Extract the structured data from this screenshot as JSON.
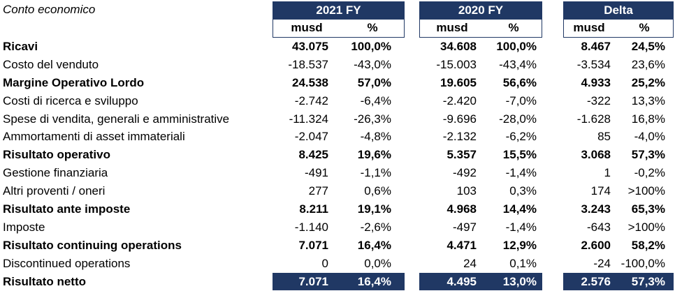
{
  "title": "Conto economico",
  "groups": [
    {
      "label": "2021 FY",
      "sub1": "musd",
      "sub2": "%"
    },
    {
      "label": "2020 FY",
      "sub1": "musd",
      "sub2": "%"
    },
    {
      "label": "Delta",
      "sub1": "musd",
      "sub2": "%"
    }
  ],
  "rows": [
    {
      "label": "Ricavi",
      "bold": true,
      "v": [
        "43.075",
        "100,0%",
        "34.608",
        "100,0%",
        "8.467",
        "24,5%"
      ]
    },
    {
      "label": "Costo del venduto",
      "bold": false,
      "v": [
        "-18.537",
        "-43,0%",
        "-15.003",
        "-43,4%",
        "-3.534",
        "23,6%"
      ]
    },
    {
      "label": "Margine Operativo Lordo",
      "bold": true,
      "v": [
        "24.538",
        "57,0%",
        "19.605",
        "56,6%",
        "4.933",
        "25,2%"
      ]
    },
    {
      "label": "Costi di ricerca e sviluppo",
      "bold": false,
      "v": [
        "-2.742",
        "-6,4%",
        "-2.420",
        "-7,0%",
        "-322",
        "13,3%"
      ]
    },
    {
      "label": "Spese di vendita, generali e amministrative",
      "bold": false,
      "v": [
        "-11.324",
        "-26,3%",
        "-9.696",
        "-28,0%",
        "-1.628",
        "16,8%"
      ]
    },
    {
      "label": "Ammortamenti di asset immateriali",
      "bold": false,
      "v": [
        "-2.047",
        "-4,8%",
        "-2.132",
        "-6,2%",
        "85",
        "-4,0%"
      ]
    },
    {
      "label": "Risultato operativo",
      "bold": true,
      "v": [
        "8.425",
        "19,6%",
        "5.357",
        "15,5%",
        "3.068",
        "57,3%"
      ]
    },
    {
      "label": "Gestione finanziaria",
      "bold": false,
      "v": [
        "-491",
        "-1,1%",
        "-492",
        "-1,4%",
        "1",
        "-0,2%"
      ]
    },
    {
      "label": "Altri proventi / oneri",
      "bold": false,
      "v": [
        "277",
        "0,6%",
        "103",
        "0,3%",
        "174",
        ">100%"
      ]
    },
    {
      "label": "Risultato ante imposte",
      "bold": true,
      "v": [
        "8.211",
        "19,1%",
        "4.968",
        "14,4%",
        "3.243",
        "65,3%"
      ]
    },
    {
      "label": "Imposte",
      "bold": false,
      "v": [
        "-1.140",
        "-2,6%",
        "-497",
        "-1,4%",
        "-643",
        ">100%"
      ]
    },
    {
      "label": "Risultato continuing operations",
      "bold": true,
      "v": [
        "7.071",
        "16,4%",
        "4.471",
        "12,9%",
        "2.600",
        "58,2%"
      ]
    },
    {
      "label": "Discontinued operations",
      "bold": false,
      "v": [
        "0",
        "0,0%",
        "24",
        "0,1%",
        "-24",
        "-100,0%"
      ]
    },
    {
      "label": "Risultato netto",
      "bold": true,
      "total": true,
      "v": [
        "7.071",
        "16,4%",
        "4.495",
        "13,0%",
        "2.576",
        "57,3%"
      ]
    }
  ],
  "colors": {
    "header_bg": "#203864",
    "header_text": "#ffffff"
  }
}
